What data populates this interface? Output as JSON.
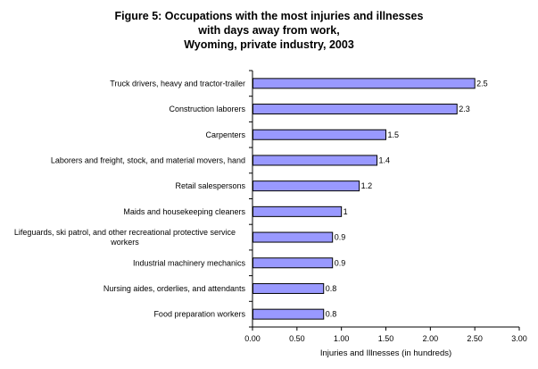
{
  "chart_data": {
    "type": "bar",
    "orientation": "horizontal",
    "title_lines": [
      "Figure 5: Occupations with the most injuries and illnesses",
      "with days away from work,",
      "Wyoming, private industry, 2003"
    ],
    "categories": [
      [
        "Truck drivers, heavy and tractor-trailer"
      ],
      [
        "Construction laborers"
      ],
      [
        "Carpenters"
      ],
      [
        "Laborers and freight, stock, and material movers, hand"
      ],
      [
        "Retail salespersons"
      ],
      [
        "Maids and housekeeping cleaners"
      ],
      [
        "Lifeguards, ski patrol, and other recreational protective service",
        "workers"
      ],
      [
        "Industrial machinery mechanics"
      ],
      [
        "Nursing aides, orderlies, and attendants"
      ],
      [
        "Food preparation workers"
      ]
    ],
    "values": [
      2.5,
      2.3,
      1.5,
      1.4,
      1.2,
      1.0,
      0.9,
      0.9,
      0.8,
      0.8
    ],
    "value_labels": [
      "2.5",
      "2.3",
      "1.5",
      "1.4",
      "1.2",
      "1",
      "0.9",
      "0.9",
      "0.8",
      "0.8"
    ],
    "xlabel": "Injuries and Illnesses (in hundreds)",
    "xlim": [
      0,
      3
    ],
    "xticks": [
      0,
      0.5,
      1,
      1.5,
      2,
      2.5,
      3
    ],
    "xtick_labels": [
      "0.00",
      "0.50",
      "1.00",
      "1.50",
      "2.00",
      "2.50",
      "3.00"
    ],
    "grid": false,
    "legend": "none",
    "bar_color": "#9999ff",
    "bar_border_color": "#000000"
  }
}
